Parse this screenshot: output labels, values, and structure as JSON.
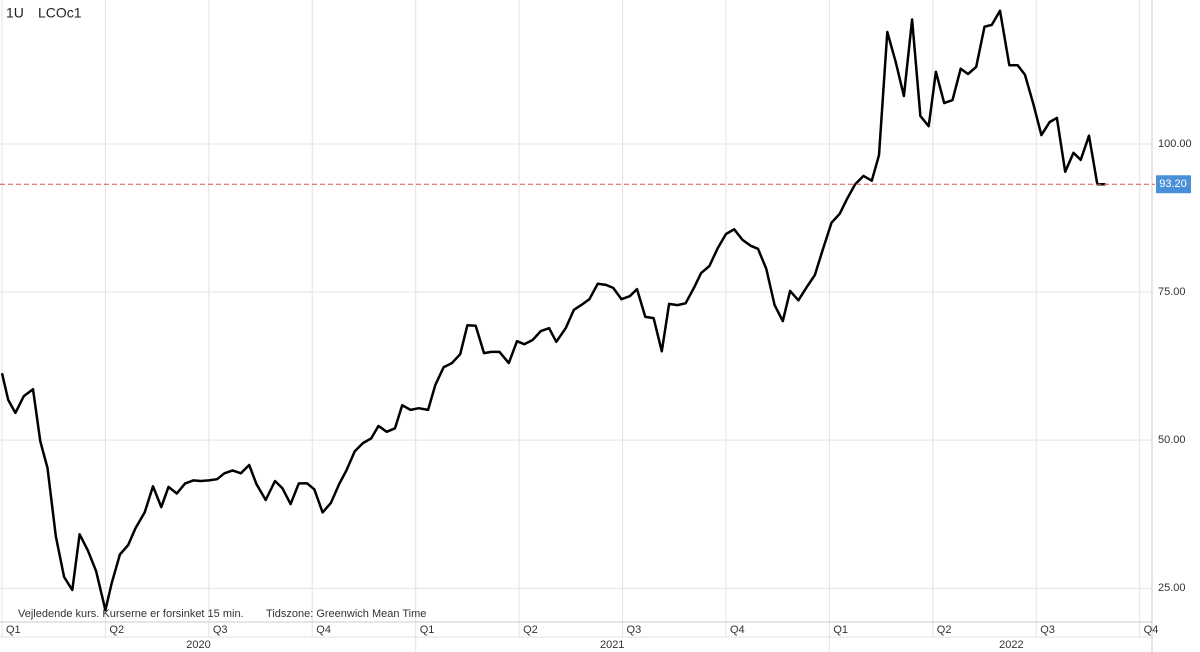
{
  "header": {
    "interval": "1U",
    "symbol": "LCOc1"
  },
  "footer": {
    "note": "Vejledende kurs. Kurserne er forsinket 15 min.",
    "timezone": "Tidszone: Greenwich Mean Time"
  },
  "chart_data": {
    "type": "line",
    "x": [
      0,
      0.06,
      0.13,
      0.21,
      0.3,
      0.37,
      0.44,
      0.52,
      0.6,
      0.68,
      0.75,
      0.83,
      0.91,
      1.0,
      1.06,
      1.14,
      1.22,
      1.29,
      1.38,
      1.46,
      1.54,
      1.61,
      1.69,
      1.77,
      1.85,
      1.92,
      2.0,
      2.08,
      2.15,
      2.23,
      2.31,
      2.39,
      2.46,
      2.55,
      2.64,
      2.71,
      2.79,
      2.87,
      2.95,
      3.02,
      3.1,
      3.18,
      3.26,
      3.33,
      3.41,
      3.49,
      3.57,
      3.64,
      3.72,
      3.8,
      3.87,
      3.95,
      4.03,
      4.12,
      4.19,
      4.27,
      4.35,
      4.43,
      4.5,
      4.58,
      4.66,
      4.73,
      4.81,
      4.9,
      4.98,
      5.05,
      5.13,
      5.21,
      5.29,
      5.36,
      5.45,
      5.53,
      5.6,
      5.68,
      5.76,
      5.84,
      5.91,
      5.99,
      6.07,
      6.14,
      6.22,
      6.3,
      6.38,
      6.45,
      6.53,
      6.61,
      6.69,
      6.76,
      6.84,
      6.92,
      7.0,
      7.08,
      7.16,
      7.24,
      7.31,
      7.39,
      7.47,
      7.55,
      7.62,
      7.7,
      7.78,
      7.86,
      7.93,
      8.02,
      8.1,
      8.17,
      8.25,
      8.33,
      8.41,
      8.48,
      8.56,
      8.64,
      8.72,
      8.8,
      8.88,
      8.96,
      9.03,
      9.11,
      9.19,
      9.27,
      9.34,
      9.42,
      9.5,
      9.57,
      9.65,
      9.74,
      9.82,
      9.89,
      9.97,
      10.05,
      10.13,
      10.2,
      10.28,
      10.36,
      10.43,
      10.51,
      10.59,
      10.67
    ],
    "series": [
      {
        "name": "LCOc1",
        "color": "#000000",
        "values": [
          61.3,
          56.8,
          54.6,
          57.4,
          58.6,
          49.8,
          45.3,
          33.8,
          26.9,
          24.7,
          34.1,
          31.4,
          27.9,
          21.3,
          25.8,
          30.7,
          32.3,
          35.1,
          37.8,
          42.2,
          38.7,
          42.1,
          41.0,
          42.7,
          43.2,
          43.1,
          43.2,
          43.4,
          44.4,
          44.9,
          44.4,
          45.8,
          42.6,
          39.9,
          43.1,
          41.9,
          39.2,
          42.7,
          42.7,
          41.7,
          37.8,
          39.4,
          42.6,
          44.9,
          48.1,
          49.5,
          50.3,
          52.4,
          51.4,
          52.0,
          55.9,
          55.1,
          55.4,
          55.1,
          59.3,
          62.3,
          63.0,
          64.5,
          69.4,
          69.3,
          64.7,
          64.9,
          64.9,
          63.0,
          66.7,
          66.2,
          66.9,
          68.4,
          68.9,
          66.6,
          68.9,
          72.0,
          72.8,
          73.8,
          76.4,
          76.2,
          75.7,
          73.8,
          74.3,
          75.5,
          70.8,
          70.6,
          65.0,
          73.0,
          72.8,
          73.1,
          75.7,
          78.2,
          79.4,
          82.4,
          84.8,
          85.6,
          83.8,
          82.8,
          82.3,
          78.9,
          72.8,
          70.1,
          75.2,
          73.6,
          75.8,
          77.9,
          81.8,
          86.7,
          88.2,
          90.7,
          93.2,
          94.6,
          93.8,
          98.1,
          118.9,
          113.9,
          108.1,
          121.0,
          104.7,
          103.0,
          112.2,
          106.9,
          107.4,
          112.7,
          111.8,
          113.0,
          119.8,
          120.1,
          122.5,
          113.3,
          113.3,
          111.7,
          106.9,
          101.5,
          103.7,
          104.4,
          95.3,
          98.5,
          97.3,
          101.4,
          93.2,
          93.2
        ]
      }
    ],
    "last_price": {
      "value": 93.2,
      "label": "93.20"
    },
    "ylim": [
      19.3,
      124.3
    ],
    "yticks": [
      {
        "value": 25,
        "label": "25.00"
      },
      {
        "value": 50,
        "label": "50.00"
      },
      {
        "value": 75,
        "label": "75.00"
      },
      {
        "value": 100,
        "label": "100.00"
      }
    ],
    "xlim": [
      0,
      11.1
    ],
    "xticks": [
      {
        "value": 0,
        "label": "Q1"
      },
      {
        "value": 1,
        "label": "Q2"
      },
      {
        "value": 2,
        "label": "Q3"
      },
      {
        "value": 3,
        "label": "Q4"
      },
      {
        "value": 4,
        "label": "Q1"
      },
      {
        "value": 5,
        "label": "Q2"
      },
      {
        "value": 6,
        "label": "Q3"
      },
      {
        "value": 7,
        "label": "Q4"
      },
      {
        "value": 8,
        "label": "Q1"
      },
      {
        "value": 9,
        "label": "Q2"
      },
      {
        "value": 10,
        "label": "Q3"
      },
      {
        "value": 11,
        "label": "Q4"
      }
    ],
    "x_groups": [
      {
        "value": 1.9,
        "label": "2020"
      },
      {
        "value": 5.9,
        "label": "2021"
      },
      {
        "value": 9.76,
        "label": "2022"
      }
    ],
    "grid": true
  }
}
